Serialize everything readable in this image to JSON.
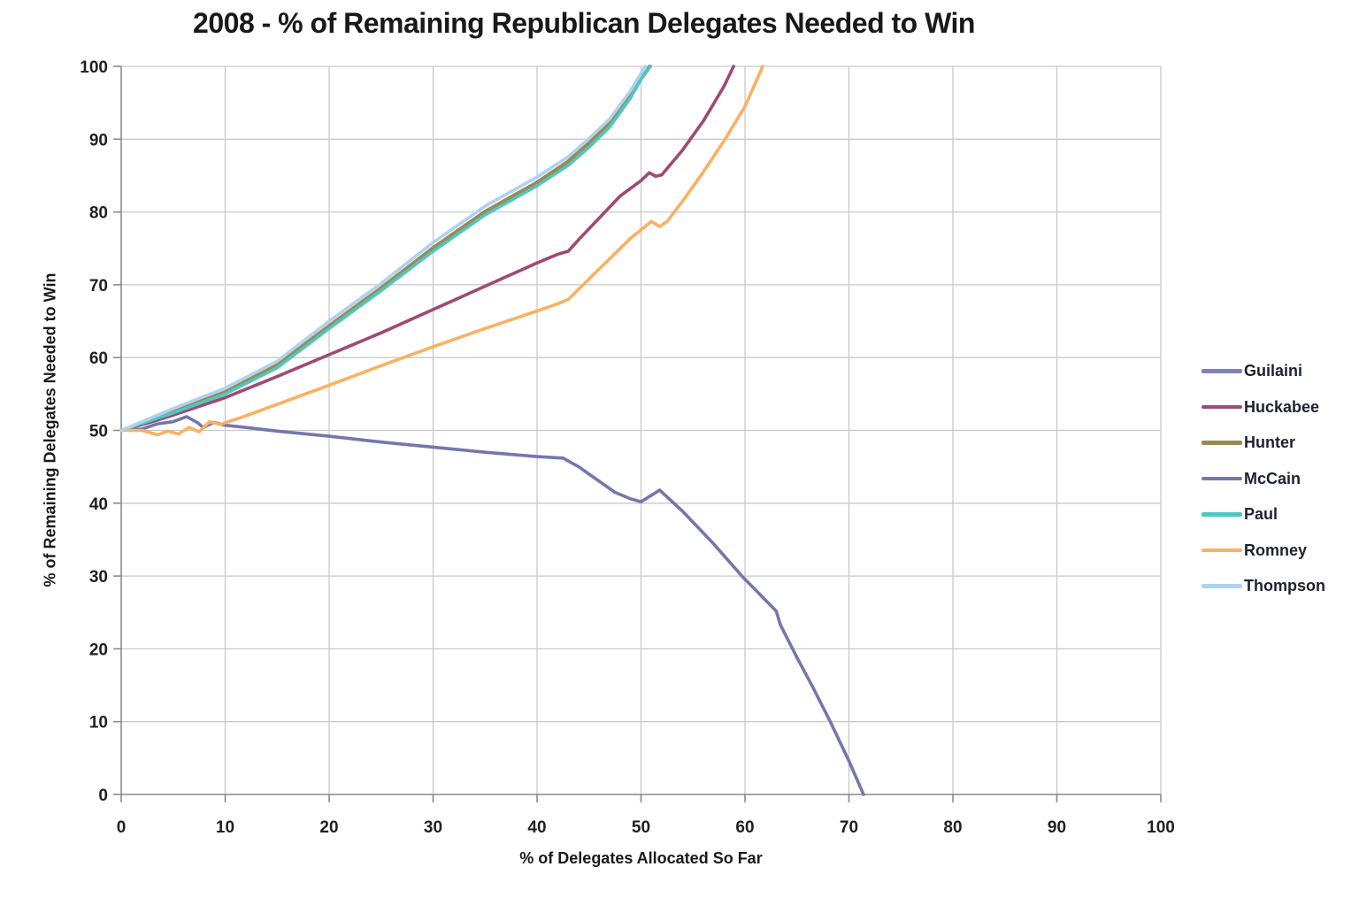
{
  "chart_data": {
    "type": "line",
    "title": "2008 - % of Remaining Republican Delegates Needed to Win",
    "xlabel": "% of Delegates Allocated So Far",
    "ylabel": "% of Remaining Delegates Needed to Win",
    "xlim": [
      0,
      100
    ],
    "ylim": [
      0,
      100
    ],
    "x_ticks": [
      0,
      10,
      20,
      30,
      40,
      50,
      60,
      70,
      80,
      90,
      100
    ],
    "y_ticks": [
      0,
      10,
      20,
      30,
      40,
      50,
      60,
      70,
      80,
      90,
      100
    ],
    "grid": true,
    "legend_position": "right",
    "series": [
      {
        "name": "Guilaini",
        "color": "#7F83B8",
        "points": [
          [
            0,
            50
          ],
          [
            5,
            52.5
          ],
          [
            10,
            55.1
          ],
          [
            15,
            58.8
          ],
          [
            20,
            64.2
          ],
          [
            25,
            69.4
          ],
          [
            30,
            74.9
          ],
          [
            35,
            79.9
          ],
          [
            40,
            83.9
          ],
          [
            43,
            86.8
          ],
          [
            45,
            89.2
          ],
          [
            47,
            92.0
          ],
          [
            49,
            96.0
          ],
          [
            50.8,
            100
          ]
        ]
      },
      {
        "name": "Huckabee",
        "color": "#9E4A74",
        "points": [
          [
            0,
            50
          ],
          [
            3,
            51.2
          ],
          [
            5,
            52.1
          ],
          [
            10,
            54.5
          ],
          [
            15,
            57.4
          ],
          [
            20,
            60.4
          ],
          [
            25,
            63.4
          ],
          [
            30,
            66.6
          ],
          [
            35,
            69.8
          ],
          [
            40,
            73.0
          ],
          [
            42,
            74.2
          ],
          [
            43,
            74.6
          ],
          [
            44,
            76.2
          ],
          [
            46,
            79.2
          ],
          [
            48,
            82.2
          ],
          [
            50,
            84.3
          ],
          [
            50.8,
            85.4
          ],
          [
            51.4,
            84.9
          ],
          [
            52,
            85.1
          ],
          [
            54,
            88.5
          ],
          [
            56,
            92.5
          ],
          [
            58,
            97.3
          ],
          [
            58.9,
            100
          ]
        ]
      },
      {
        "name": "Hunter",
        "color": "#9A8A52",
        "points": [
          [
            0,
            50
          ],
          [
            5,
            52.7
          ],
          [
            10,
            55.3
          ],
          [
            15,
            59.0
          ],
          [
            20,
            64.4
          ],
          [
            25,
            69.6
          ],
          [
            30,
            75.1
          ],
          [
            35,
            80.1
          ],
          [
            40,
            84.1
          ],
          [
            43,
            87.0
          ],
          [
            45,
            89.5
          ],
          [
            47,
            92.3
          ],
          [
            49,
            96.3
          ],
          [
            50.9,
            100
          ]
        ]
      },
      {
        "name": "McCain",
        "color": "#7377AE",
        "points": [
          [
            0,
            50
          ],
          [
            2,
            50.2
          ],
          [
            3.5,
            50.9
          ],
          [
            5,
            51.2
          ],
          [
            6.3,
            51.9
          ],
          [
            7.3,
            51.1
          ],
          [
            7.9,
            50.4
          ],
          [
            8.9,
            51.1
          ],
          [
            10,
            50.7
          ],
          [
            12,
            50.4
          ],
          [
            15,
            49.9
          ],
          [
            20,
            49.2
          ],
          [
            25,
            48.4
          ],
          [
            30,
            47.7
          ],
          [
            35,
            47.0
          ],
          [
            40,
            46.4
          ],
          [
            42.5,
            46.2
          ],
          [
            44,
            45.0
          ],
          [
            46,
            43.0
          ],
          [
            47.5,
            41.5
          ],
          [
            49,
            40.6
          ],
          [
            50,
            40.2
          ],
          [
            51.8,
            41.8
          ],
          [
            54,
            38.9
          ],
          [
            57,
            34.4
          ],
          [
            59.7,
            30.0
          ],
          [
            63,
            25.2
          ],
          [
            63.4,
            23.3
          ],
          [
            65,
            18.8
          ],
          [
            66.5,
            14.8
          ],
          [
            68.2,
            10.0
          ],
          [
            70,
            4.6
          ],
          [
            71.4,
            0
          ]
        ]
      },
      {
        "name": "Paul",
        "color": "#4EC7C0",
        "points": [
          [
            0,
            50
          ],
          [
            5,
            52.4
          ],
          [
            10,
            55.0
          ],
          [
            15,
            58.6
          ],
          [
            20,
            64.0
          ],
          [
            25,
            69.2
          ],
          [
            30,
            74.6
          ],
          [
            35,
            79.6
          ],
          [
            40,
            83.6
          ],
          [
            43,
            86.4
          ],
          [
            45,
            88.9
          ],
          [
            47,
            91.7
          ],
          [
            49,
            95.7
          ],
          [
            50.3,
            99.0
          ],
          [
            50.9,
            100
          ]
        ]
      },
      {
        "name": "Romney",
        "color": "#F9B162",
        "points": [
          [
            0,
            50
          ],
          [
            2,
            50.0
          ],
          [
            3.5,
            49.4
          ],
          [
            4.5,
            49.9
          ],
          [
            5.5,
            49.5
          ],
          [
            6.5,
            50.4
          ],
          [
            7.5,
            49.8
          ],
          [
            8.5,
            51.2
          ],
          [
            9.5,
            50.8
          ],
          [
            12,
            52.0
          ],
          [
            15,
            53.6
          ],
          [
            20,
            56.2
          ],
          [
            25,
            58.9
          ],
          [
            30,
            61.5
          ],
          [
            35,
            64.0
          ],
          [
            40,
            66.4
          ],
          [
            42,
            67.4
          ],
          [
            43,
            68.0
          ],
          [
            45,
            70.8
          ],
          [
            47,
            73.6
          ],
          [
            49,
            76.4
          ],
          [
            51,
            78.7
          ],
          [
            51.8,
            78.0
          ],
          [
            52.5,
            78.7
          ],
          [
            54,
            81.5
          ],
          [
            56,
            85.5
          ],
          [
            58,
            89.8
          ],
          [
            60,
            94.5
          ],
          [
            61.7,
            100
          ]
        ]
      },
      {
        "name": "Thompson",
        "color": "#AFD2F0",
        "points": [
          [
            0,
            50
          ],
          [
            5,
            53.0
          ],
          [
            10,
            55.8
          ],
          [
            15,
            59.5
          ],
          [
            20,
            65.0
          ],
          [
            25,
            70.2
          ],
          [
            30,
            75.8
          ],
          [
            35,
            80.8
          ],
          [
            40,
            84.8
          ],
          [
            43,
            87.6
          ],
          [
            45,
            90.1
          ],
          [
            47,
            92.8
          ],
          [
            49,
            96.7
          ],
          [
            50.4,
            100
          ]
        ]
      }
    ]
  },
  "colors": {
    "background": "#FFFFFF",
    "grid": "#C9C9C9",
    "axis": "#8A8A8A",
    "tick_text": "#1F1F1F"
  }
}
